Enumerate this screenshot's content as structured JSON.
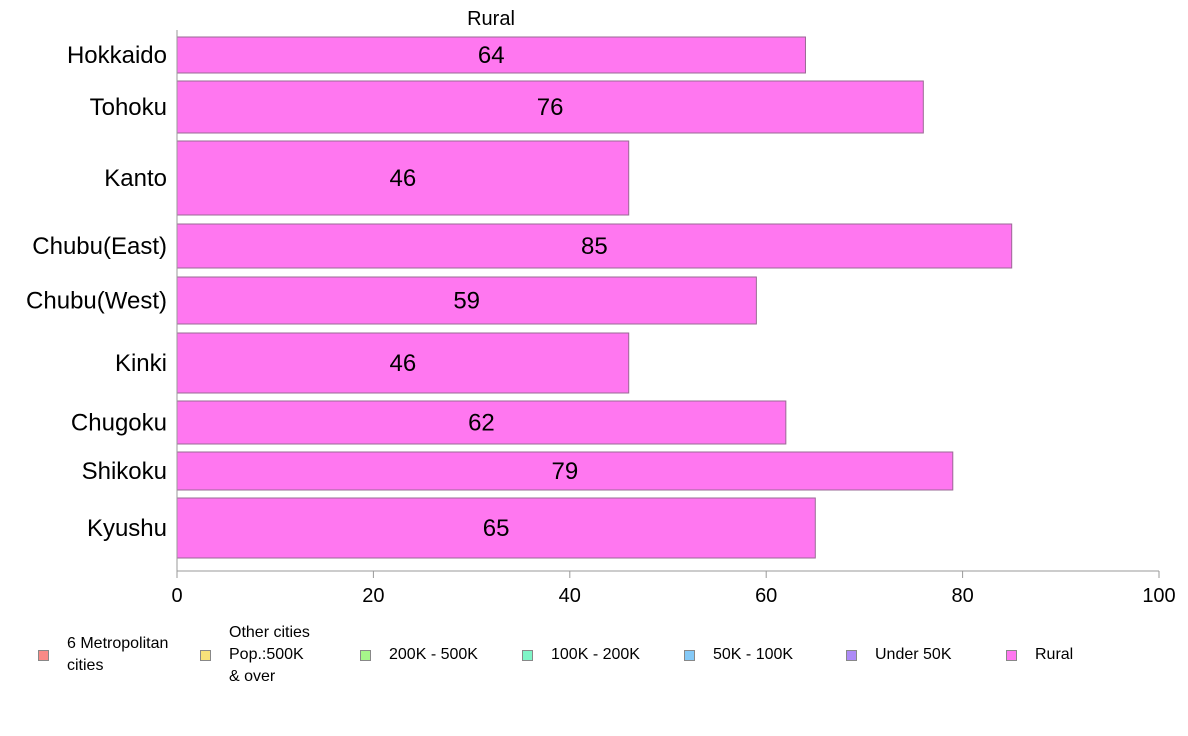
{
  "chart_data": {
    "type": "bar",
    "orientation": "horizontal",
    "title": "Rural",
    "categories": [
      "Hokkaido",
      "Tohoku",
      "Kanto",
      "Chubu(East)",
      "Chubu(West)",
      "Kinki",
      "Chugoku",
      "Shikoku",
      "Kyushu"
    ],
    "values": [
      64,
      76,
      46,
      85,
      59,
      46,
      62,
      79,
      65
    ],
    "x_ticks": [
      "0",
      "20",
      "40",
      "60",
      "80",
      "100"
    ],
    "xlim": [
      0,
      100
    ],
    "bar_color": "#ff77f0",
    "legend_position": "bottom",
    "legend": [
      {
        "label": "6 Metropolitan\ncities",
        "color": "#f98a86"
      },
      {
        "label": "Other cities\nPop.:500K\n & over",
        "color": "#f7e27a"
      },
      {
        "label": "200K - 500K",
        "color": "#a6f58a"
      },
      {
        "label": "100K - 200K",
        "color": "#7ff5c7"
      },
      {
        "label": "50K - 100K",
        "color": "#84c9f7"
      },
      {
        "label": "Under 50K",
        "color": "#ad8af7"
      },
      {
        "label": "Rural",
        "color": "#ff77f0"
      }
    ]
  }
}
